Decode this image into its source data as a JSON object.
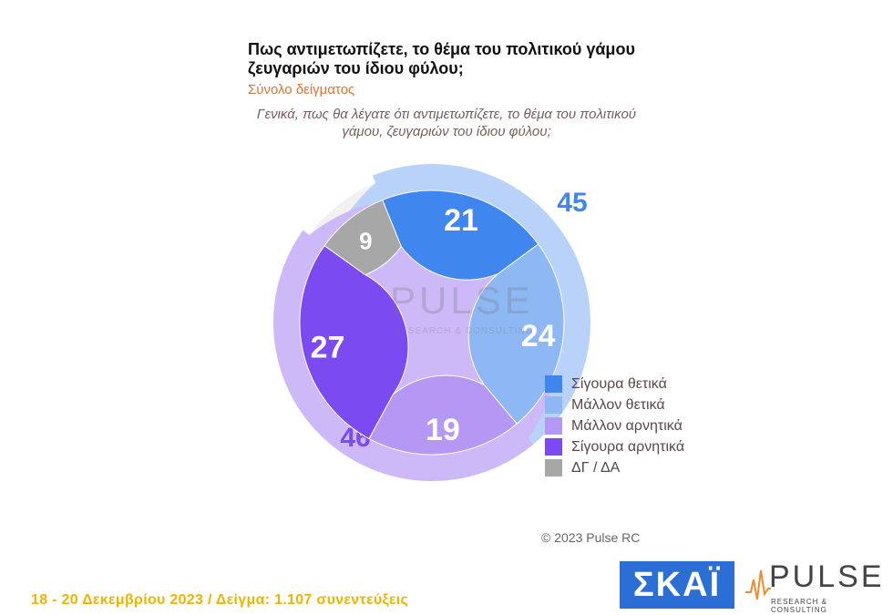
{
  "header": {
    "title": "Πως αντιμετωπίζετε, το θέμα του πολιτικού γάμου ζευγαριών του ίδιου φύλου;",
    "subtitle": "Σύνολο δείγματος",
    "question": "Γενικά, πως θα λέγατε ότι αντιμετωπίζετε, το θέμα του πολιτικού γάμου, ζευγαριών του ίδιου φύλου;"
  },
  "chart_data": {
    "type": "pie",
    "variant": "donut",
    "categories": [
      "Σίγουρα θετικά",
      "Μάλλον θετικά",
      "Μάλλον αρνητικά",
      "Σίγουρα αρνητικά",
      "ΔΓ / ΔΑ"
    ],
    "values": [
      21,
      24,
      19,
      27,
      9
    ],
    "colors": [
      "#3f86ee",
      "#8db8f4",
      "#b598f3",
      "#7b4af0",
      "#a7a7a7"
    ],
    "groups": [
      {
        "value": 45,
        "members": [
          0,
          1
        ],
        "color": "#b8d2f9",
        "label_color": "#3f86ee"
      },
      {
        "value": 46,
        "members": [
          2,
          3
        ],
        "color": "#cdb9f8",
        "label_color": "#7b4af0"
      }
    ],
    "legend_position": "bottom-right"
  },
  "footer": {
    "copyright": "© 2023 Pulse RC",
    "fieldwork": "18 - 20 Δεκεμβρίου 2023 / Δείγμα: 1.107 συνεντεύξεις"
  },
  "logos": {
    "skai": "ΣΚΑΪ",
    "pulse": "PULSE",
    "pulse_sub": "RESEARCH & CONSULTING"
  }
}
